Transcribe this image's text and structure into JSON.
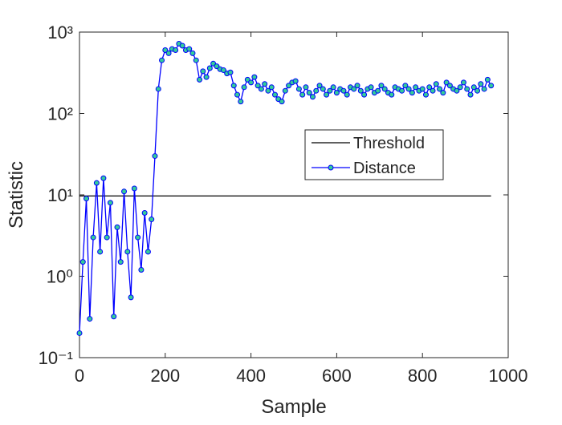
{
  "chart_data": {
    "type": "line",
    "xlabel": "Sample",
    "ylabel": "Statistic",
    "xlim": [
      0,
      1000
    ],
    "xticks": [
      0,
      200,
      400,
      600,
      800,
      1000
    ],
    "ylim": [
      0.1,
      1000
    ],
    "ylog": true,
    "yticks": [
      {
        "value": 0.1,
        "label": "10⁻¹"
      },
      {
        "value": 1,
        "label": "10⁰"
      },
      {
        "value": 10,
        "label": "10¹"
      },
      {
        "value": 100,
        "label": "10²"
      },
      {
        "value": 1000,
        "label": "10³"
      }
    ],
    "legend": "upper-right-inset",
    "series": [
      {
        "name": "Threshold",
        "color": "#000000",
        "x": [
          0,
          960
        ],
        "values": [
          9.7,
          9.7
        ]
      },
      {
        "name": "Distance",
        "color": "#0000ff",
        "marker_color": "#33cc99",
        "x": [
          0,
          8,
          16,
          24,
          32,
          40,
          48,
          56,
          64,
          72,
          80,
          88,
          96,
          104,
          112,
          120,
          128,
          136,
          144,
          152,
          160,
          168,
          176,
          184,
          192,
          200,
          208,
          216,
          224,
          232,
          240,
          248,
          256,
          264,
          272,
          280,
          288,
          296,
          304,
          312,
          320,
          328,
          336,
          344,
          352,
          360,
          368,
          376,
          384,
          392,
          400,
          408,
          416,
          424,
          432,
          440,
          448,
          456,
          464,
          472,
          480,
          488,
          496,
          504,
          512,
          520,
          528,
          536,
          544,
          552,
          560,
          568,
          576,
          584,
          592,
          600,
          608,
          616,
          624,
          632,
          640,
          648,
          656,
          664,
          672,
          680,
          688,
          696,
          704,
          712,
          720,
          728,
          736,
          744,
          752,
          760,
          768,
          776,
          784,
          792,
          800,
          808,
          816,
          824,
          832,
          840,
          848,
          856,
          864,
          872,
          880,
          888,
          896,
          904,
          912,
          920,
          928,
          936,
          944,
          952,
          960
        ],
        "values": [
          0.2,
          1.5,
          9,
          0.3,
          3,
          14,
          2,
          16,
          3,
          8,
          0.32,
          4,
          1.5,
          11,
          2,
          0.55,
          12,
          3,
          1.2,
          6,
          2,
          5,
          30,
          200,
          450,
          600,
          550,
          620,
          600,
          720,
          680,
          600,
          620,
          550,
          450,
          260,
          330,
          280,
          360,
          410,
          380,
          350,
          340,
          310,
          320,
          220,
          170,
          140,
          210,
          260,
          240,
          280,
          220,
          200,
          230,
          190,
          210,
          170,
          150,
          140,
          190,
          220,
          240,
          250,
          200,
          170,
          210,
          180,
          160,
          190,
          220,
          200,
          170,
          190,
          210,
          180,
          200,
          190,
          170,
          210,
          200,
          220,
          190,
          170,
          200,
          210,
          180,
          190,
          220,
          200,
          180,
          170,
          210,
          200,
          190,
          220,
          200,
          180,
          210,
          190,
          200,
          170,
          210,
          190,
          230,
          200,
          180,
          240,
          220,
          200,
          190,
          210,
          240,
          200,
          170,
          210,
          190,
          230,
          200,
          260,
          220
        ]
      }
    ]
  }
}
